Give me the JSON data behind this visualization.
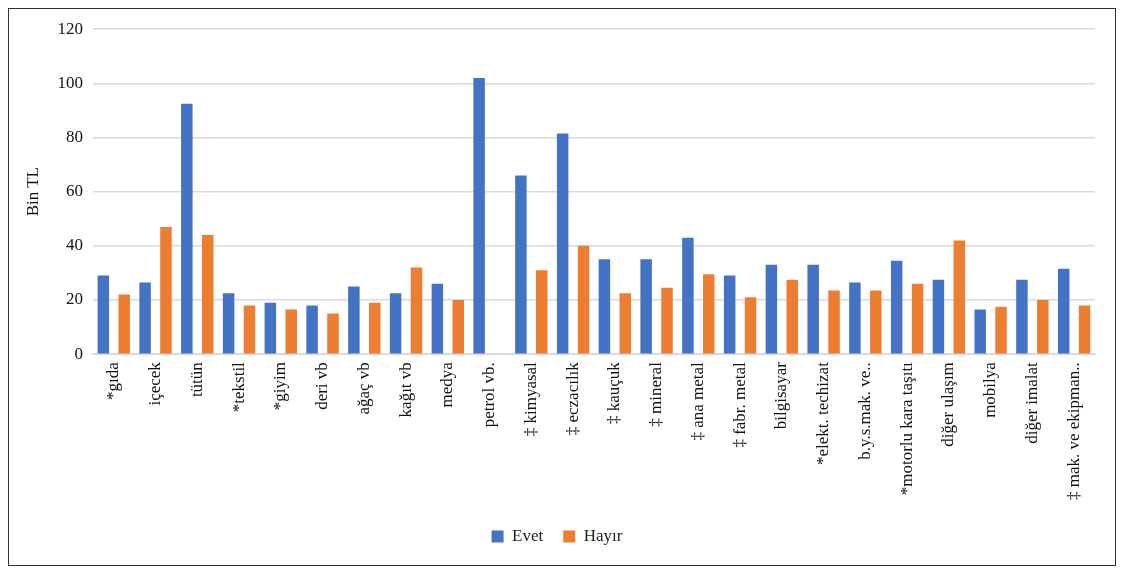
{
  "chart_data": {
    "type": "bar",
    "ylabel": "Bin TL",
    "categories": [
      "*gıda",
      "içecek",
      "tütün",
      "*tekstil",
      "*giyim",
      "deri vb",
      "ağaç vb",
      "kağıt vb",
      "medya",
      "petrol vb.",
      "‡ kimyasal",
      "‡ eczacılık",
      "‡ kauçuk",
      "‡ mineral",
      "‡ ana metal",
      "‡ fabr. metal",
      "bilgisayar",
      "*elekt. techizat",
      "b.y.s.mak. ve..",
      "*motorlu kara taşıtı",
      "diğer ulaşım",
      "mobilya",
      "diğer imalat",
      "‡ mak. ve ekipman.."
    ],
    "series": [
      {
        "name": "Evet",
        "color": "#4472c4",
        "values": [
          29,
          26.5,
          92.5,
          22.5,
          19,
          18,
          25,
          22.5,
          26,
          102,
          66,
          81.5,
          35,
          35,
          43,
          29,
          33,
          33,
          26.5,
          34.5,
          27.5,
          16.5,
          27.5,
          31.5
        ]
      },
      {
        "name": "Hayır",
        "color": "#ed7d31",
        "values": [
          22,
          47,
          44,
          18,
          16.5,
          15,
          19,
          32,
          20,
          null,
          31,
          40,
          22.5,
          24.5,
          29.5,
          21,
          27.5,
          23.5,
          23.5,
          26,
          42,
          17.5,
          20,
          18
        ]
      }
    ],
    "ylim": [
      0,
      120
    ],
    "yticks": [
      0,
      20,
      40,
      60,
      80,
      100,
      120
    ],
    "grid": "y",
    "legend": "bottom"
  }
}
